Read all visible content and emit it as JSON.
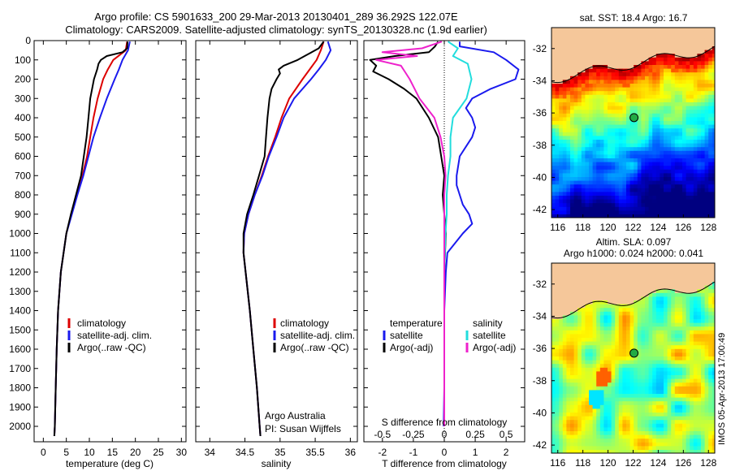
{
  "header": {
    "title1": "Argo profile: CS 5901633_200 29-Mar-2013 20130401_289 36.292S 122.07E",
    "title2": "Climatology: CARS2009. Satellite-adjusted climatology: synTS_20130328.nc (1.9d earlier)"
  },
  "side_label": "IMOS 05-Apr-2013 17:00:49",
  "colors": {
    "red": "#dd0000",
    "blue": "#1a1aee",
    "black": "#000000",
    "cyan": "#22dddd",
    "magenta": "#ee22cc",
    "land": "#f5c79a"
  },
  "chart_data": [
    {
      "type": "line",
      "panel": "temperature",
      "xlabel": "temperature (deg C)",
      "xlim": [
        -2,
        31
      ],
      "ylim": [
        2080,
        0
      ],
      "xticks": [
        0,
        5,
        10,
        15,
        20,
        25,
        30
      ],
      "yticks": [
        0,
        100,
        200,
        300,
        400,
        500,
        600,
        700,
        800,
        900,
        1000,
        1100,
        1200,
        1300,
        1400,
        1500,
        1600,
        1700,
        1800,
        1900,
        2000
      ],
      "legend": [
        "climatology",
        "satellite-adj. clim.",
        "Argo(..raw -QC)"
      ],
      "series": [
        {
          "name": "climatology",
          "color": "red",
          "depth": [
            5,
            50,
            100,
            150,
            200,
            300,
            400,
            500,
            600,
            700,
            800,
            900,
            1000,
            1200,
            1400,
            1600,
            1800,
            2000,
            2050
          ],
          "values": [
            18.2,
            17.9,
            15.2,
            14.0,
            13.0,
            11.8,
            10.9,
            10.2,
            9.5,
            8.5,
            7.3,
            6.1,
            5.0,
            3.8,
            3.2,
            2.9,
            2.7,
            2.5,
            2.4
          ]
        },
        {
          "name": "satellite-adj. clim.",
          "color": "blue",
          "depth": [
            5,
            50,
            100,
            150,
            200,
            300,
            400,
            500,
            600,
            700,
            800,
            900,
            1000,
            1200,
            1400,
            1600,
            1800,
            2000,
            2050
          ],
          "values": [
            18.8,
            18.4,
            17.2,
            16.4,
            15.5,
            13.8,
            12.3,
            10.9,
            9.8,
            8.7,
            7.4,
            6.2,
            5.0,
            3.8,
            3.2,
            2.9,
            2.7,
            2.5,
            2.4
          ]
        },
        {
          "name": "Argo(..raw -QC)",
          "color": "black",
          "depth": [
            5,
            40,
            60,
            80,
            100,
            120,
            150,
            200,
            250,
            300,
            400,
            500,
            600,
            700,
            800,
            900,
            1000,
            1200,
            1400,
            1600,
            1800,
            2000,
            2050
          ],
          "values": [
            18.3,
            18.2,
            17.2,
            13.8,
            12.5,
            12.0,
            11.7,
            11.0,
            10.6,
            10.2,
            9.8,
            9.4,
            8.8,
            8.2,
            7.1,
            6.0,
            5.0,
            3.8,
            3.2,
            2.9,
            2.7,
            2.5,
            2.4
          ]
        }
      ]
    },
    {
      "type": "line",
      "panel": "salinity",
      "xlabel": "salinity",
      "xlim": [
        33.8,
        36.1
      ],
      "ylim": [
        2080,
        0
      ],
      "xticks": [
        34,
        34.5,
        35,
        35.5,
        36
      ],
      "legend": [
        "climatology",
        "satellite-adj. clim.",
        "Argo(..raw -QC)"
      ],
      "annotations": [
        "Argo Australia",
        "PI: Susan Wijffels"
      ],
      "series": [
        {
          "name": "climatology",
          "color": "red",
          "depth": [
            5,
            50,
            100,
            150,
            200,
            300,
            400,
            500,
            600,
            700,
            800,
            900,
            1000,
            1100,
            1200,
            1400,
            1600,
            1800,
            2000,
            2050
          ],
          "values": [
            35.62,
            35.58,
            35.52,
            35.42,
            35.32,
            35.13,
            35.02,
            34.93,
            34.83,
            34.74,
            34.64,
            34.55,
            34.49,
            34.48,
            34.51,
            34.57,
            34.62,
            34.67,
            34.71,
            34.72
          ]
        },
        {
          "name": "satellite-adj. clim.",
          "color": "blue",
          "depth": [
            5,
            50,
            100,
            150,
            200,
            300,
            400,
            500,
            600,
            700,
            800,
            900,
            1000,
            1100,
            1200,
            1400,
            1600,
            1800,
            2000,
            2050
          ],
          "values": [
            35.68,
            35.72,
            35.65,
            35.55,
            35.44,
            35.2,
            35.05,
            34.95,
            34.84,
            34.75,
            34.64,
            34.55,
            34.49,
            34.48,
            34.51,
            34.57,
            34.62,
            34.67,
            34.71,
            34.72
          ]
        },
        {
          "name": "Argo(..raw -QC)",
          "color": "black",
          "depth": [
            5,
            40,
            60,
            80,
            100,
            130,
            150,
            170,
            200,
            250,
            300,
            400,
            500,
            600,
            700,
            800,
            900,
            1000,
            1100,
            1200,
            1400,
            1600,
            1800,
            2000,
            2050
          ],
          "values": [
            35.62,
            35.55,
            35.45,
            35.35,
            35.25,
            35.05,
            34.98,
            35.0,
            34.95,
            34.88,
            34.85,
            34.82,
            34.8,
            34.78,
            34.7,
            34.62,
            34.53,
            34.48,
            34.48,
            34.51,
            34.57,
            34.62,
            34.67,
            34.71,
            34.72
          ]
        }
      ]
    },
    {
      "type": "line",
      "panel": "differences",
      "xlabel": "T difference from climatology",
      "xlabel_top": "S difference from climatology",
      "xlim": [
        -2.6,
        2.6
      ],
      "ylim": [
        2080,
        0
      ],
      "xticks": [
        -2,
        -1,
        0,
        1,
        2
      ],
      "sticks": [
        "-0.5",
        "-0.25",
        "0",
        "0.25",
        "0.5"
      ],
      "legend_temperature": [
        "temperature",
        "satellite",
        "Argo(-adj)"
      ],
      "legend_salinity": [
        "salinity",
        "satellite",
        "Argo(-adj)"
      ],
      "series": [
        {
          "name": "T satellite",
          "color": "blue",
          "depth": [
            5,
            30,
            60,
            100,
            150,
            200,
            250,
            300,
            350,
            400,
            450,
            500,
            550,
            600,
            700,
            750,
            800,
            850,
            900,
            950,
            1000,
            1100,
            1200,
            1400,
            1600,
            1800,
            2000
          ],
          "values": [
            0.5,
            0.5,
            1.6,
            2.0,
            2.4,
            2.3,
            1.5,
            0.9,
            0.7,
            0.9,
            1.0,
            0.9,
            0.7,
            0.5,
            0.4,
            0.4,
            0.5,
            0.6,
            0.8,
            0.9,
            0.6,
            0.1,
            0.05,
            0,
            0,
            0,
            -0.02
          ]
        },
        {
          "name": "T Argo(-adj)",
          "color": "black",
          "depth": [
            5,
            30,
            60,
            80,
            100,
            130,
            160,
            200,
            250,
            300,
            400,
            500,
            600,
            700,
            800,
            900,
            1000,
            1200,
            1400,
            1600,
            1800,
            2000
          ],
          "values": [
            -0.2,
            -0.3,
            -0.5,
            -1.6,
            -2.4,
            -2.2,
            -2.3,
            -1.8,
            -1.3,
            -0.9,
            -0.5,
            -0.2,
            -0.1,
            0,
            -0.05,
            0,
            0.05,
            0,
            0,
            0,
            0,
            0
          ]
        },
        {
          "name": "S satellite",
          "color": "cyan",
          "depth": [
            5,
            40,
            80,
            120,
            200,
            300,
            400,
            500,
            600,
            700,
            800,
            900,
            1000,
            1200,
            1400,
            1600,
            1800,
            2000
          ],
          "values": [
            0.03,
            0.11,
            0.07,
            0.19,
            0.22,
            0.18,
            0.07,
            0.05,
            0.05,
            0.03,
            0.02,
            0.02,
            0.01,
            0.0,
            0.0,
            0.0,
            0.0,
            0.0
          ]
        },
        {
          "name": "S Argo(-adj)",
          "color": "magenta",
          "depth": [
            5,
            40,
            60,
            80,
            100,
            130,
            160,
            200,
            300,
            400,
            500,
            600,
            700,
            800,
            1000,
            1200,
            1400,
            1600,
            1800,
            2000
          ],
          "values": [
            -0.02,
            -0.18,
            -0.5,
            -0.22,
            -0.55,
            -0.35,
            -0.32,
            -0.28,
            -0.2,
            -0.08,
            -0.03,
            0.0,
            0.01,
            0.0,
            0.0,
            0.0,
            0.0,
            0.0,
            0.0,
            0.0
          ]
        }
      ]
    },
    {
      "type": "heatmap",
      "panel": "sst_map",
      "title": "sat. SST: 18.4 Argo: 16.7",
      "xticks": [
        116,
        118,
        120,
        122,
        124,
        126,
        128
      ],
      "yticks": [
        -32,
        -34,
        -36,
        -38,
        -40,
        -42
      ],
      "xlim": [
        115.5,
        128.5
      ],
      "ylim": [
        -42.5,
        -30.7
      ],
      "marker": {
        "lon": 122.07,
        "lat": -36.29
      }
    },
    {
      "type": "heatmap",
      "panel": "sla_map",
      "title": "Altim. SLA: 0.097",
      "title2": "Argo h1000: 0.024 h2000: 0.041",
      "xticks": [
        116,
        118,
        120,
        122,
        124,
        126,
        128
      ],
      "yticks": [
        -32,
        -34,
        -36,
        -38,
        -40,
        -42
      ],
      "xlim": [
        115.5,
        128.5
      ],
      "ylim": [
        -42.5,
        -30.7
      ],
      "marker": {
        "lon": 122.07,
        "lat": -36.29
      }
    }
  ]
}
